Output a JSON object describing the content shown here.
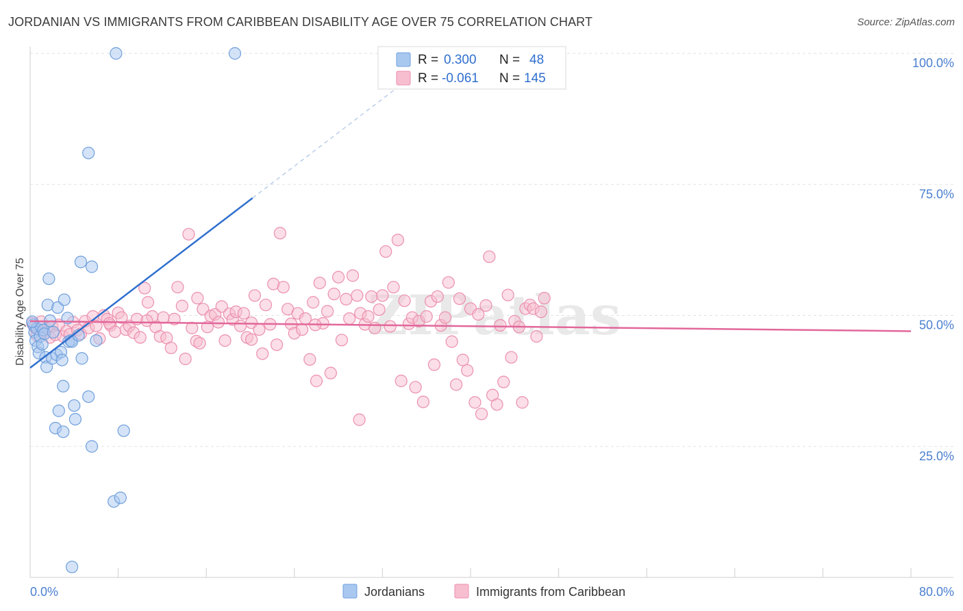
{
  "header": {
    "title": "JORDANIAN VS IMMIGRANTS FROM CARIBBEAN DISABILITY AGE OVER 75 CORRELATION CHART",
    "source": "Source: ZipAtlas.com"
  },
  "watermark": "ZIPatlas",
  "colors": {
    "blue_fill": "#a9c8f0",
    "blue_stroke": "#6f9fdc",
    "blue_line": "#2f6fce",
    "pink_fill": "#f7bed0",
    "pink_stroke": "#eb8fae",
    "pink_line": "#e2679a",
    "axis_label": "#4a7fd0",
    "grid": "#e2e2e2"
  },
  "legend": {
    "rows": [
      {
        "r_label": "R =",
        "r_value": "0.300",
        "n_label": "N =",
        "n_value": "48",
        "series": "blue"
      },
      {
        "r_label": "R =",
        "r_value": "-0.061",
        "n_label": "N =",
        "n_value": "145",
        "series": "pink"
      }
    ]
  },
  "bottom_legend": [
    {
      "label": "Jordanians",
      "series": "blue"
    },
    {
      "label": "Immigrants from Caribbean",
      "series": "pink"
    }
  ],
  "chart_data": {
    "type": "scatter",
    "title": "JORDANIAN VS IMMIGRANTS FROM CARIBBEAN DISABILITY AGE OVER 75 CORRELATION CHART",
    "xlabel": "",
    "ylabel": "Disability Age Over 75",
    "xlim": [
      0,
      80
    ],
    "ylim": [
      0,
      100
    ],
    "x_tick_labels": [
      "0.0%",
      "80.0%"
    ],
    "y_tick_labels": [
      {
        "value": 25,
        "label": "25.0%"
      },
      {
        "value": 50,
        "label": "50.0%"
      },
      {
        "value": 75,
        "label": "75.0%"
      },
      {
        "value": 100,
        "label": "100.0%"
      }
    ],
    "series": [
      {
        "name": "Jordanians",
        "color": "blue",
        "r": 0.3,
        "n": 48,
        "trend": {
          "x1": 0,
          "y1": 40.0,
          "x2": 20.2,
          "y2": 72.4,
          "dash_to_x": 34.8,
          "dash_to_y": 95.8
        },
        "points": [
          [
            0.3,
            48.2
          ],
          [
            0.4,
            46.8
          ],
          [
            0.5,
            45.2
          ],
          [
            0.6,
            47.5
          ],
          [
            0.7,
            44.0
          ],
          [
            0.8,
            42.8
          ],
          [
            0.9,
            46.0
          ],
          [
            1.0,
            47.8
          ],
          [
            1.1,
            44.5
          ],
          [
            1.2,
            47.2
          ],
          [
            1.3,
            46.5
          ],
          [
            1.4,
            42.0
          ],
          [
            1.5,
            40.2
          ],
          [
            1.6,
            52.0
          ],
          [
            1.7,
            57.0
          ],
          [
            1.8,
            49.0
          ],
          [
            2.0,
            41.8
          ],
          [
            2.1,
            46.8
          ],
          [
            2.3,
            28.5
          ],
          [
            2.4,
            42.5
          ],
          [
            2.5,
            51.5
          ],
          [
            2.6,
            31.8
          ],
          [
            2.8,
            43.0
          ],
          [
            2.9,
            41.5
          ],
          [
            3.0,
            36.5
          ],
          [
            3.0,
            27.8
          ],
          [
            3.1,
            53.0
          ],
          [
            3.4,
            49.5
          ],
          [
            3.5,
            45.0
          ],
          [
            3.7,
            45.2
          ],
          [
            3.8,
            2.0
          ],
          [
            3.8,
            45.0
          ],
          [
            4.0,
            32.8
          ],
          [
            4.1,
            30.2
          ],
          [
            4.4,
            46.2
          ],
          [
            4.6,
            60.2
          ],
          [
            4.7,
            41.8
          ],
          [
            5.3,
            81.0
          ],
          [
            5.3,
            34.5
          ],
          [
            5.6,
            59.3
          ],
          [
            5.6,
            25.0
          ],
          [
            6.0,
            45.2
          ],
          [
            7.6,
            14.5
          ],
          [
            7.8,
            100.0
          ],
          [
            8.2,
            15.2
          ],
          [
            8.5,
            28.0
          ],
          [
            18.6,
            100.0
          ],
          [
            0.2,
            48.8
          ]
        ]
      },
      {
        "name": "Immigrants from Caribbean",
        "color": "pink",
        "r": -0.061,
        "n": 145,
        "trend": {
          "x1": 0,
          "y1": 48.9,
          "x2": 80,
          "y2": 47.0
        },
        "points": [
          [
            0.2,
            48.5
          ],
          [
            0.4,
            47.8
          ],
          [
            0.6,
            46.2
          ],
          [
            0.8,
            47.3
          ],
          [
            1.0,
            48.8
          ],
          [
            1.2,
            46.8
          ],
          [
            1.5,
            47.5
          ],
          [
            1.8,
            45.8
          ],
          [
            2.0,
            47.9
          ],
          [
            2.3,
            46.3
          ],
          [
            2.6,
            48.2
          ],
          [
            3.0,
            46.0
          ],
          [
            3.3,
            47.0
          ],
          [
            3.6,
            46.4
          ],
          [
            3.9,
            48.7
          ],
          [
            4.3,
            47.2
          ],
          [
            4.6,
            46.5
          ],
          [
            5.0,
            48.9
          ],
          [
            5.3,
            47.6
          ],
          [
            5.7,
            49.8
          ],
          [
            6.0,
            48.0
          ],
          [
            6.3,
            45.6
          ],
          [
            6.7,
            50.0
          ],
          [
            7.0,
            49.3
          ],
          [
            7.3,
            48.1
          ],
          [
            7.7,
            46.9
          ],
          [
            8.0,
            50.5
          ],
          [
            8.3,
            49.6
          ],
          [
            8.7,
            47.3
          ],
          [
            9.0,
            48.0
          ],
          [
            9.4,
            46.7
          ],
          [
            9.7,
            49.3
          ],
          [
            10.0,
            45.8
          ],
          [
            10.4,
            55.2
          ],
          [
            10.7,
            52.5
          ],
          [
            11.1,
            49.8
          ],
          [
            11.4,
            47.8
          ],
          [
            11.8,
            46.0
          ],
          [
            12.1,
            49.6
          ],
          [
            12.4,
            45.7
          ],
          [
            12.8,
            43.8
          ],
          [
            13.1,
            49.3
          ],
          [
            13.4,
            55.4
          ],
          [
            13.8,
            51.8
          ],
          [
            14.1,
            41.7
          ],
          [
            14.4,
            65.5
          ],
          [
            14.7,
            47.6
          ],
          [
            15.1,
            45.1
          ],
          [
            15.4,
            44.7
          ],
          [
            15.7,
            51.2
          ],
          [
            16.1,
            47.8
          ],
          [
            16.4,
            49.9
          ],
          [
            16.8,
            50.2
          ],
          [
            17.1,
            48.7
          ],
          [
            17.4,
            51.7
          ],
          [
            17.7,
            45.2
          ],
          [
            18.1,
            50.3
          ],
          [
            18.4,
            49.2
          ],
          [
            18.7,
            50.7
          ],
          [
            19.1,
            48.0
          ],
          [
            19.4,
            50.4
          ],
          [
            19.7,
            45.8
          ],
          [
            20.1,
            48.6
          ],
          [
            20.4,
            53.8
          ],
          [
            20.8,
            47.3
          ],
          [
            21.1,
            42.7
          ],
          [
            21.4,
            52.0
          ],
          [
            21.8,
            48.3
          ],
          [
            22.1,
            56.0
          ],
          [
            22.4,
            44.4
          ],
          [
            22.7,
            65.7
          ],
          [
            23.0,
            55.4
          ],
          [
            23.4,
            51.2
          ],
          [
            23.7,
            48.4
          ],
          [
            24.0,
            46.6
          ],
          [
            24.3,
            50.4
          ],
          [
            24.7,
            47.3
          ],
          [
            25.0,
            49.4
          ],
          [
            25.4,
            41.6
          ],
          [
            25.7,
            52.5
          ],
          [
            26.0,
            37.5
          ],
          [
            26.3,
            56.2
          ],
          [
            26.6,
            48.5
          ],
          [
            27.0,
            50.8
          ],
          [
            27.3,
            39.0
          ],
          [
            27.6,
            54.1
          ],
          [
            28.0,
            57.3
          ],
          [
            28.3,
            45.3
          ],
          [
            28.7,
            53.1
          ],
          [
            29.0,
            49.4
          ],
          [
            29.3,
            57.6
          ],
          [
            29.7,
            53.8
          ],
          [
            30.0,
            50.4
          ],
          [
            30.4,
            48.3
          ],
          [
            30.7,
            49.8
          ],
          [
            31.0,
            53.6
          ],
          [
            31.3,
            47.6
          ],
          [
            31.7,
            51.1
          ],
          [
            32.0,
            53.8
          ],
          [
            32.3,
            62.2
          ],
          [
            32.7,
            47.9
          ],
          [
            33.0,
            55.4
          ],
          [
            33.4,
            64.4
          ],
          [
            33.7,
            37.5
          ],
          [
            34.0,
            52.8
          ],
          [
            34.4,
            48.4
          ],
          [
            34.7,
            49.6
          ],
          [
            35.0,
            36.3
          ],
          [
            35.3,
            48.9
          ],
          [
            35.7,
            33.5
          ],
          [
            36.0,
            49.8
          ],
          [
            36.4,
            52.7
          ],
          [
            36.7,
            40.6
          ],
          [
            37.0,
            53.6
          ],
          [
            37.3,
            48.1
          ],
          [
            37.7,
            49.6
          ],
          [
            38.0,
            56.3
          ],
          [
            38.3,
            45.0
          ],
          [
            38.7,
            36.8
          ],
          [
            39.0,
            53.2
          ],
          [
            39.3,
            41.5
          ],
          [
            39.7,
            39.5
          ],
          [
            40.0,
            51.3
          ],
          [
            40.4,
            33.4
          ],
          [
            40.7,
            50.2
          ],
          [
            41.0,
            31.2
          ],
          [
            41.4,
            51.9
          ],
          [
            41.7,
            61.2
          ],
          [
            42.0,
            34.8
          ],
          [
            42.4,
            33.0
          ],
          [
            42.7,
            48.1
          ],
          [
            43.0,
            37.3
          ],
          [
            43.4,
            53.9
          ],
          [
            43.7,
            42.0
          ],
          [
            44.0,
            48.9
          ],
          [
            44.4,
            47.8
          ],
          [
            44.7,
            33.4
          ],
          [
            45.0,
            51.3
          ],
          [
            45.4,
            52.0
          ],
          [
            45.7,
            51.3
          ],
          [
            46.0,
            46.0
          ],
          [
            46.4,
            50.7
          ],
          [
            46.7,
            53.3
          ],
          [
            20.1,
            45.4
          ],
          [
            25.9,
            48.2
          ],
          [
            29.9,
            30.1
          ],
          [
            10.6,
            49.0
          ],
          [
            15.2,
            53.3
          ],
          [
            7.2,
            48.5
          ]
        ]
      }
    ]
  }
}
